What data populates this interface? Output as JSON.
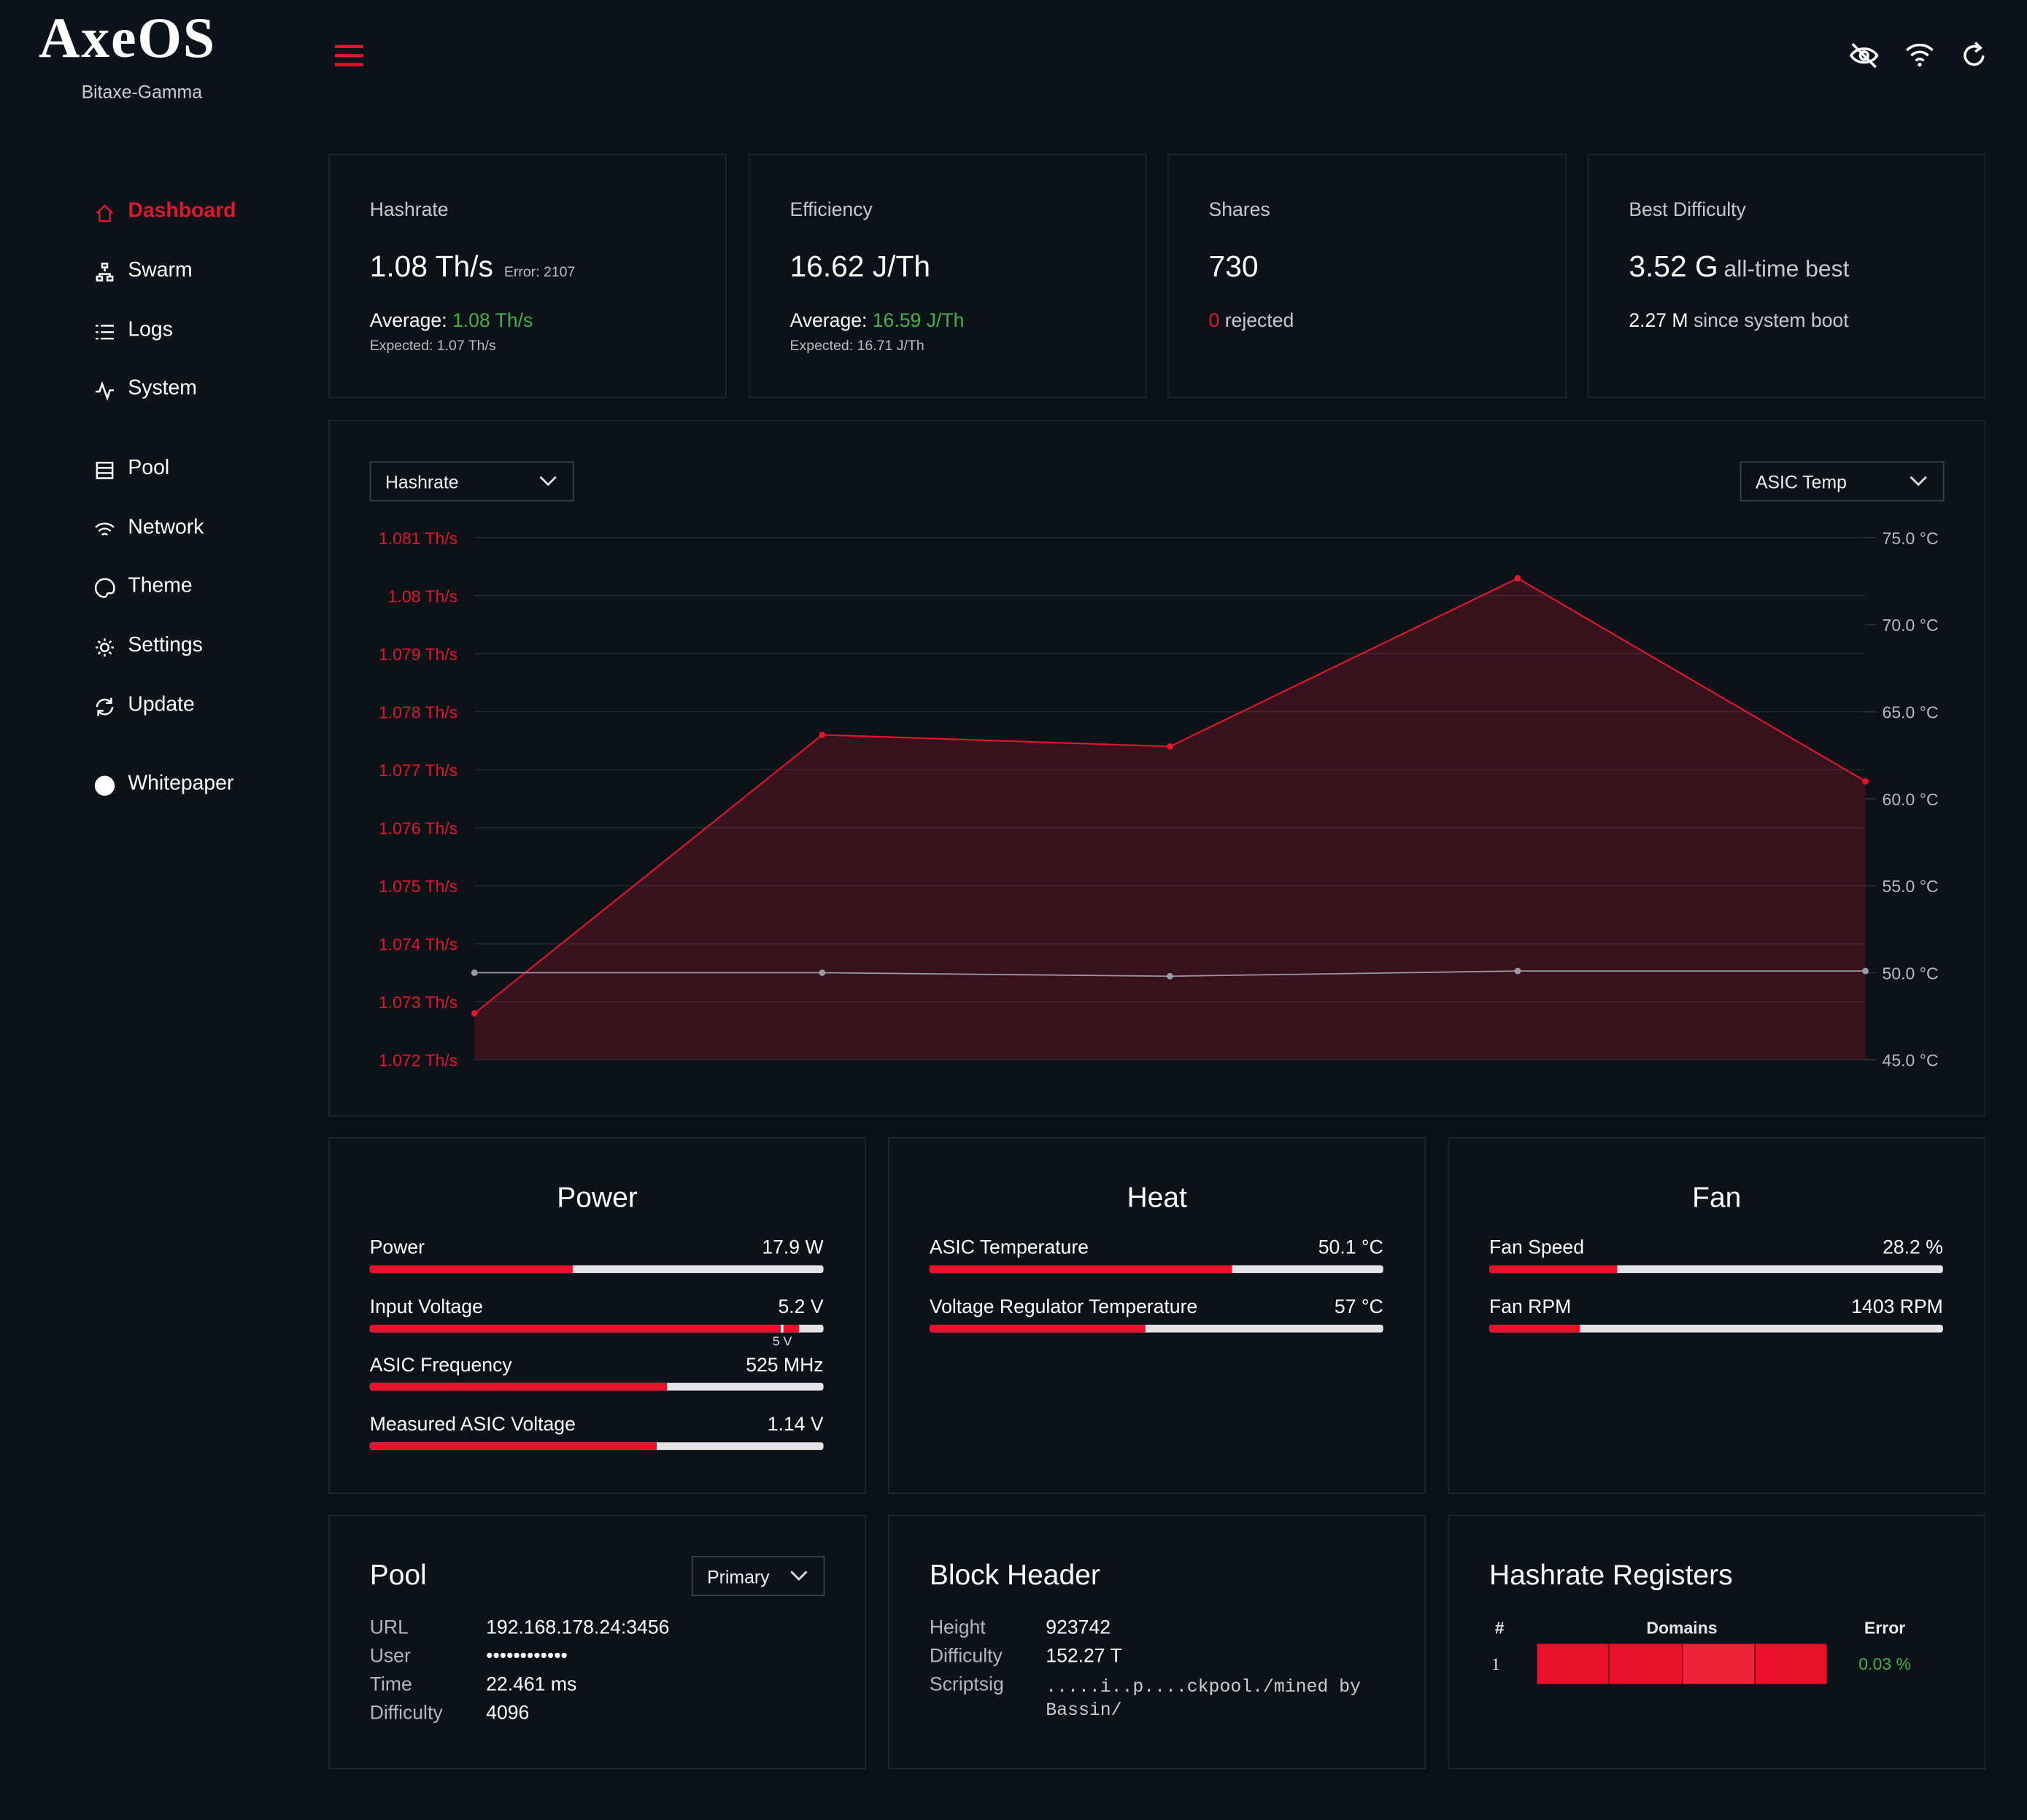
{
  "header": {
    "logo": "AxeOS",
    "device": "Bitaxe-Gamma"
  },
  "nav": [
    "Dashboard",
    "Swarm",
    "Logs",
    "System",
    "Pool",
    "Network",
    "Theme",
    "Settings",
    "Update",
    "Whitepaper"
  ],
  "stats": [
    {
      "title": "Hashrate",
      "value": "1.08 Th/s",
      "note": "Error: 2107",
      "average_label": "Average:",
      "average": "1.08 Th/s",
      "expected": "Expected: 1.07 Th/s"
    },
    {
      "title": "Efficiency",
      "value": "16.62 J/Th",
      "average_label": "Average:",
      "average": "16.59 J/Th",
      "expected": "Expected: 16.71 J/Th"
    },
    {
      "title": "Shares",
      "value": "730",
      "rejected_count": "0",
      "rejected_label": "rejected"
    },
    {
      "title": "Best Difficulty",
      "value": "3.52 G",
      "note": "all-time best",
      "session": "2.27 M",
      "session_label": "since system boot"
    }
  ],
  "chart": {
    "type": "line",
    "series": [
      {
        "name": "Hashrate",
        "color": "#e0162b",
        "values": [
          1.0728,
          1.0776,
          1.0774,
          1.0803,
          1.0768
        ]
      },
      {
        "name": "ASIC Temp",
        "color": "#9a9aa6",
        "axis": "y2",
        "values": [
          50.0,
          50.0,
          49.8,
          50.1,
          50.1
        ]
      }
    ],
    "ylim": [
      1.072,
      1.081
    ],
    "yticks": [
      {
        "value": 1.081,
        "label": "1.081 Th/s"
      },
      {
        "value": 1.08,
        "label": "1.08 Th/s"
      },
      {
        "value": 1.079,
        "label": "1.079 Th/s"
      },
      {
        "value": 1.078,
        "label": "1.078 Th/s"
      },
      {
        "value": 1.077,
        "label": "1.077 Th/s"
      },
      {
        "value": 1.076,
        "label": "1.076 Th/s"
      },
      {
        "value": 1.075,
        "label": "1.075 Th/s"
      },
      {
        "value": 1.074,
        "label": "1.074 Th/s"
      },
      {
        "value": 1.073,
        "label": "1.073 Th/s"
      },
      {
        "value": 1.072,
        "label": "1.072 Th/s"
      }
    ],
    "y2lim": [
      45,
      75
    ],
    "y2ticks": [
      {
        "value": 75,
        "label": "75.0 °C"
      },
      {
        "value": 70,
        "label": "70.0 °C"
      },
      {
        "value": 65,
        "label": "65.0 °C"
      },
      {
        "value": 60,
        "label": "60.0 °C"
      },
      {
        "value": 55,
        "label": "55.0 °C"
      },
      {
        "value": 50,
        "label": "50.0 °C"
      },
      {
        "value": 45,
        "label": "45.0 °C"
      }
    ],
    "grid": true
  },
  "gauges": [
    {
      "title": "Power",
      "items": [
        {
          "label": "Power",
          "value": 17.9,
          "value_label": "17.9 W",
          "range": [
            0,
            40
          ]
        },
        {
          "label": "Input Voltage",
          "value": 5.2,
          "value_label": "5.2 V",
          "range": [
            0,
            5.5
          ],
          "marker": {
            "value": 5,
            "label": "5 V"
          }
        },
        {
          "label": "ASIC Frequency",
          "value": 525,
          "value_label": "525 MHz",
          "range": [
            0,
            800
          ]
        },
        {
          "label": "Measured ASIC Voltage",
          "value": 1.14,
          "value_label": "1.14 V",
          "range": [
            0,
            1.8
          ]
        }
      ]
    },
    {
      "title": "Heat",
      "items": [
        {
          "label": "ASIC Temperature",
          "value": 50.1,
          "value_label": "50.1 °C",
          "range": [
            0,
            75
          ]
        },
        {
          "label": "Voltage Regulator Temperature",
          "value": 57,
          "value_label": "57 °C",
          "range": [
            0,
            120
          ]
        }
      ]
    },
    {
      "title": "Fan",
      "items": [
        {
          "label": "Fan Speed",
          "value": 28.2,
          "value_label": "28.2 %",
          "range": [
            0,
            100
          ]
        },
        {
          "label": "Fan RPM",
          "value": 1403,
          "value_label": "1403 RPM",
          "range": [
            0,
            7000
          ]
        }
      ]
    }
  ],
  "pool": {
    "title": "Pool",
    "selector": "Primary",
    "rows": [
      [
        "URL",
        "192.168.178.24:3456"
      ],
      [
        "User",
        "••••••••••••"
      ],
      [
        "Time",
        "22.461 ms"
      ],
      [
        "Difficulty",
        "4096"
      ]
    ]
  },
  "block_header": {
    "title": "Block Header",
    "rows": [
      [
        "Height",
        "923742"
      ],
      [
        "Difficulty",
        "152.27 T"
      ],
      [
        "Scriptsig",
        ".....i..p....ckpool./mined by Bassin/"
      ]
    ]
  },
  "hashrate_registers": {
    "title": "Hashrate Registers",
    "columns": [
      "#",
      "Domains",
      "Error"
    ],
    "rows": [
      [
        "1",
        "0.03 %"
      ]
    ]
  }
}
